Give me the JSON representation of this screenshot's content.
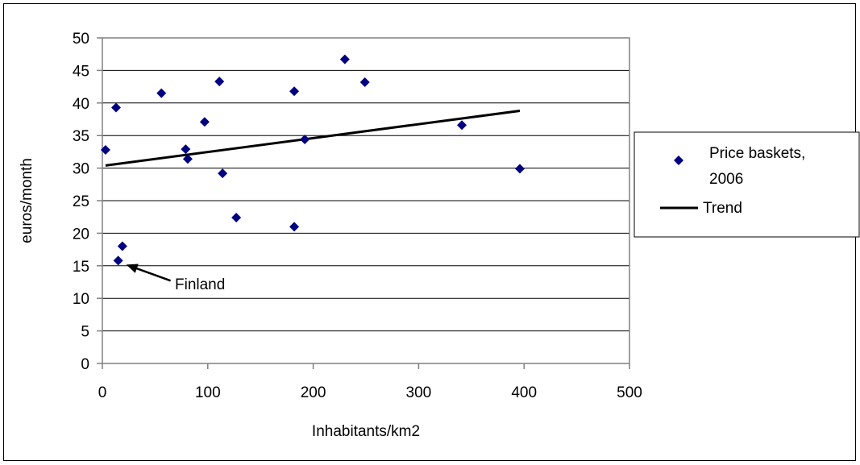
{
  "chart_data": {
    "type": "scatter",
    "xlabel": "Inhabitants/km2",
    "ylabel": "euros/month",
    "xlim": [
      0,
      500
    ],
    "ylim": [
      0,
      50
    ],
    "xticks": [
      0,
      100,
      200,
      300,
      400,
      500
    ],
    "yticks": [
      0,
      5,
      10,
      15,
      20,
      25,
      30,
      35,
      40,
      45,
      50
    ],
    "grid": "horizontal",
    "legend_position": "right",
    "series": [
      {
        "name": "Price baskets, 2006",
        "name_lines": [
          "Price baskets,",
          "2006"
        ],
        "marker": "diamond",
        "color": "#000080",
        "points": [
          {
            "x": 3,
            "y": 32.8
          },
          {
            "x": 13,
            "y": 39.3
          },
          {
            "x": 15,
            "y": 15.8
          },
          {
            "x": 19,
            "y": 18.0
          },
          {
            "x": 56,
            "y": 41.5
          },
          {
            "x": 79,
            "y": 32.9
          },
          {
            "x": 81,
            "y": 31.4
          },
          {
            "x": 97,
            "y": 37.1
          },
          {
            "x": 111,
            "y": 43.3
          },
          {
            "x": 114,
            "y": 29.2
          },
          {
            "x": 127,
            "y": 22.4
          },
          {
            "x": 182,
            "y": 41.8
          },
          {
            "x": 182,
            "y": 21.0
          },
          {
            "x": 192,
            "y": 34.4
          },
          {
            "x": 230,
            "y": 46.7
          },
          {
            "x": 249,
            "y": 43.2
          },
          {
            "x": 341,
            "y": 36.6
          },
          {
            "x": 396,
            "y": 29.9
          }
        ]
      },
      {
        "name": "Trend",
        "type": "line",
        "color": "#000000",
        "points": [
          {
            "x": 3,
            "y": 30.4
          },
          {
            "x": 396,
            "y": 38.8
          }
        ]
      }
    ],
    "annotations": [
      {
        "text": "Finland",
        "x": 15,
        "y": 15.8
      }
    ]
  }
}
